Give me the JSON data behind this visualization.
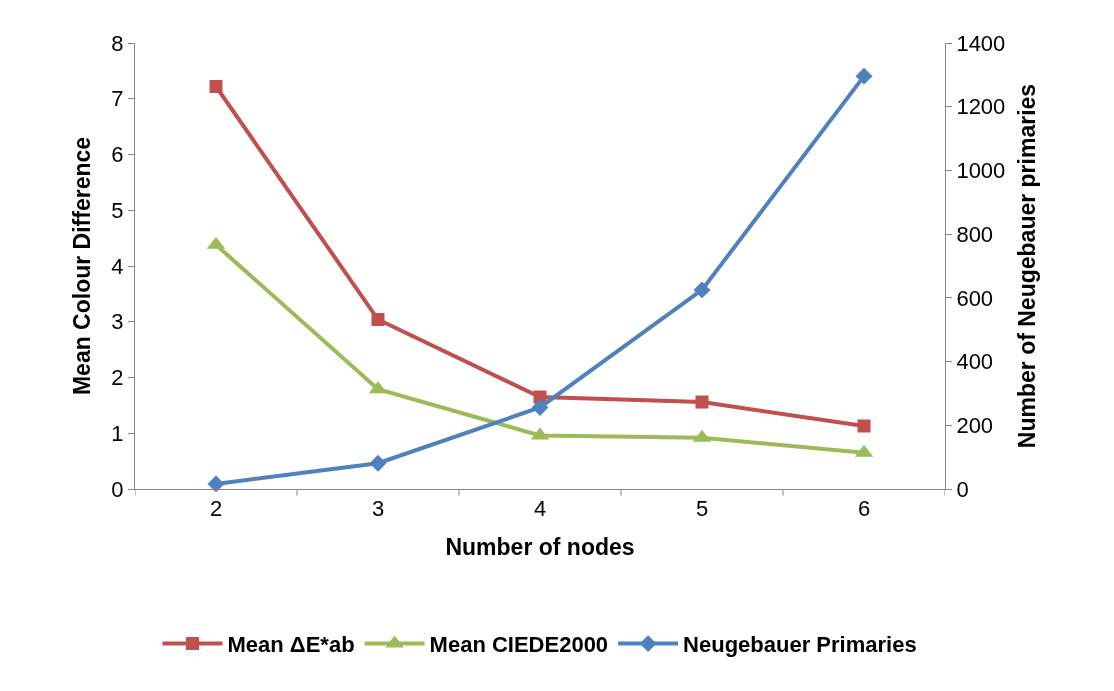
{
  "chart_data": {
    "type": "line",
    "xlabel": "Number of nodes",
    "ylabel": "Mean Colour Difference",
    "y2label": "Number of Neugebauer primaries",
    "categories": [
      "2",
      "3",
      "4",
      "5",
      "6"
    ],
    "series": [
      {
        "name": "Mean ΔE*ab",
        "color": "#c0504d",
        "marker": "square",
        "values": [
          7.22,
          3.04,
          1.65,
          1.56,
          1.13
        ]
      },
      {
        "name": "Mean CIEDE2000",
        "color": "#9bbb59",
        "marker": "triangle",
        "values": [
          4.38,
          1.79,
          0.96,
          0.92,
          0.65
        ]
      },
      {
        "name": "Neugebauer Primaries",
        "color": "#4f81bd",
        "marker": "diamond",
        "axis": "y2",
        "values": [
          16,
          81,
          256,
          625,
          1296
        ]
      }
    ],
    "ylim": [
      0,
      8
    ],
    "yticks": [
      0,
      1,
      2,
      3,
      4,
      5,
      6,
      7,
      8
    ],
    "y2lim": [
      0,
      1400
    ],
    "y2ticks": [
      0,
      200,
      400,
      600,
      800,
      1000,
      1200,
      1400
    ],
    "grid": false,
    "legend": "bottom",
    "line_style": "solid"
  }
}
